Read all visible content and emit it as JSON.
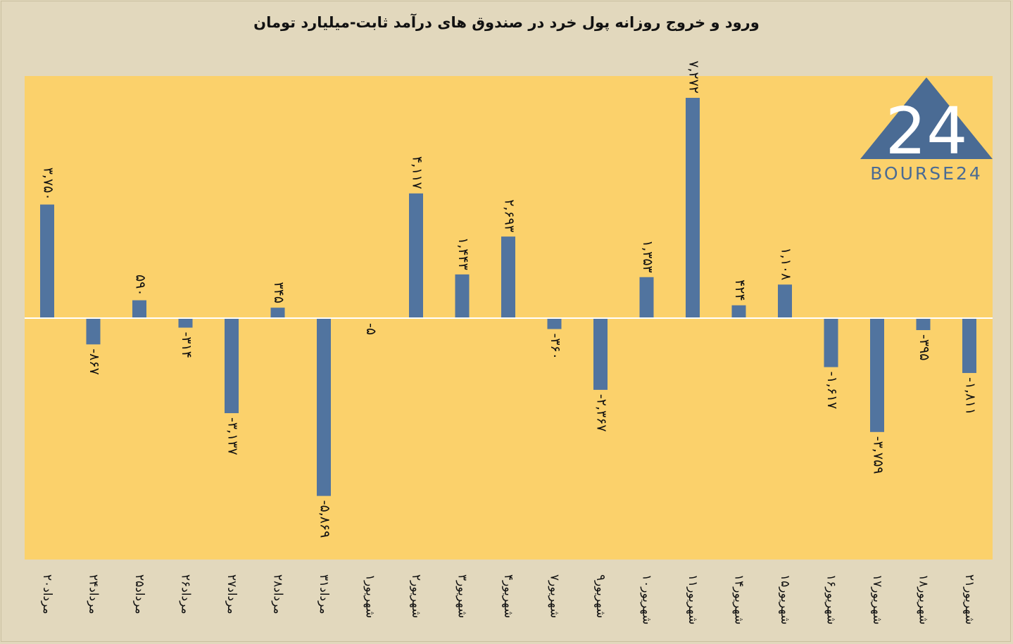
{
  "chart_data": {
    "type": "bar",
    "title": "ورود و خروج روزانه پول خرد در صندوق های درآمد ثابت-میلیارد تومان",
    "categories": [
      "۲۰مرداد",
      "۲۴مرداد",
      "۲۵مرداد",
      "۲۶مرداد",
      "۲۷مرداد",
      "۲۸مرداد",
      "۳۱مرداد",
      "۱شهریور",
      "۲شهریور",
      "۳شهریور",
      "۴شهریور",
      "۷شهریور",
      "۹شهریور",
      "۱۰شهریور",
      "۱۱شهریور",
      "۱۴شهریور",
      "۱۵شهریور",
      "۱۶شهریور",
      "۱۷شهریور",
      "۱۸شهریور",
      "۲۱شهریور"
    ],
    "values": [
      3750,
      -867,
      590,
      -314,
      -3137,
      345,
      -5869,
      -5,
      4117,
      1443,
      2693,
      -360,
      -2367,
      1353,
      7272,
      424,
      1108,
      -1617,
      -3759,
      -395,
      -1811
    ],
    "data_labels": [
      "۳,۷۵۰",
      "-۸۶۷",
      "۵۹۰",
      "-۳۱۴",
      "-۳,۱۳۷",
      "۳۴۵",
      "-۵,۸۶۹",
      "-۵",
      "۴,۱۱۷",
      "۱,۴۴۳",
      "۲,۶۹۳",
      "-۳۶۰",
      "-۲,۳۶۷",
      "۱,۳۵۳",
      "۷,۲۷۲",
      "۴۲۴",
      "۱,۱۰۸",
      "-۱,۶۱۷",
      "-۳,۷۵۹",
      "-۳۹۵",
      "-۱,۸۱۱"
    ],
    "ylim": [
      -8000,
      8000
    ],
    "grid": false,
    "colors": {
      "bar": "#51749f",
      "plot_bg": "#fbd16b",
      "page_bg": "#e2d8bd",
      "zero_line": "#ffffff"
    }
  },
  "logo": {
    "text": "BOURSE24",
    "icon": "bourse24-triangle-logo"
  }
}
